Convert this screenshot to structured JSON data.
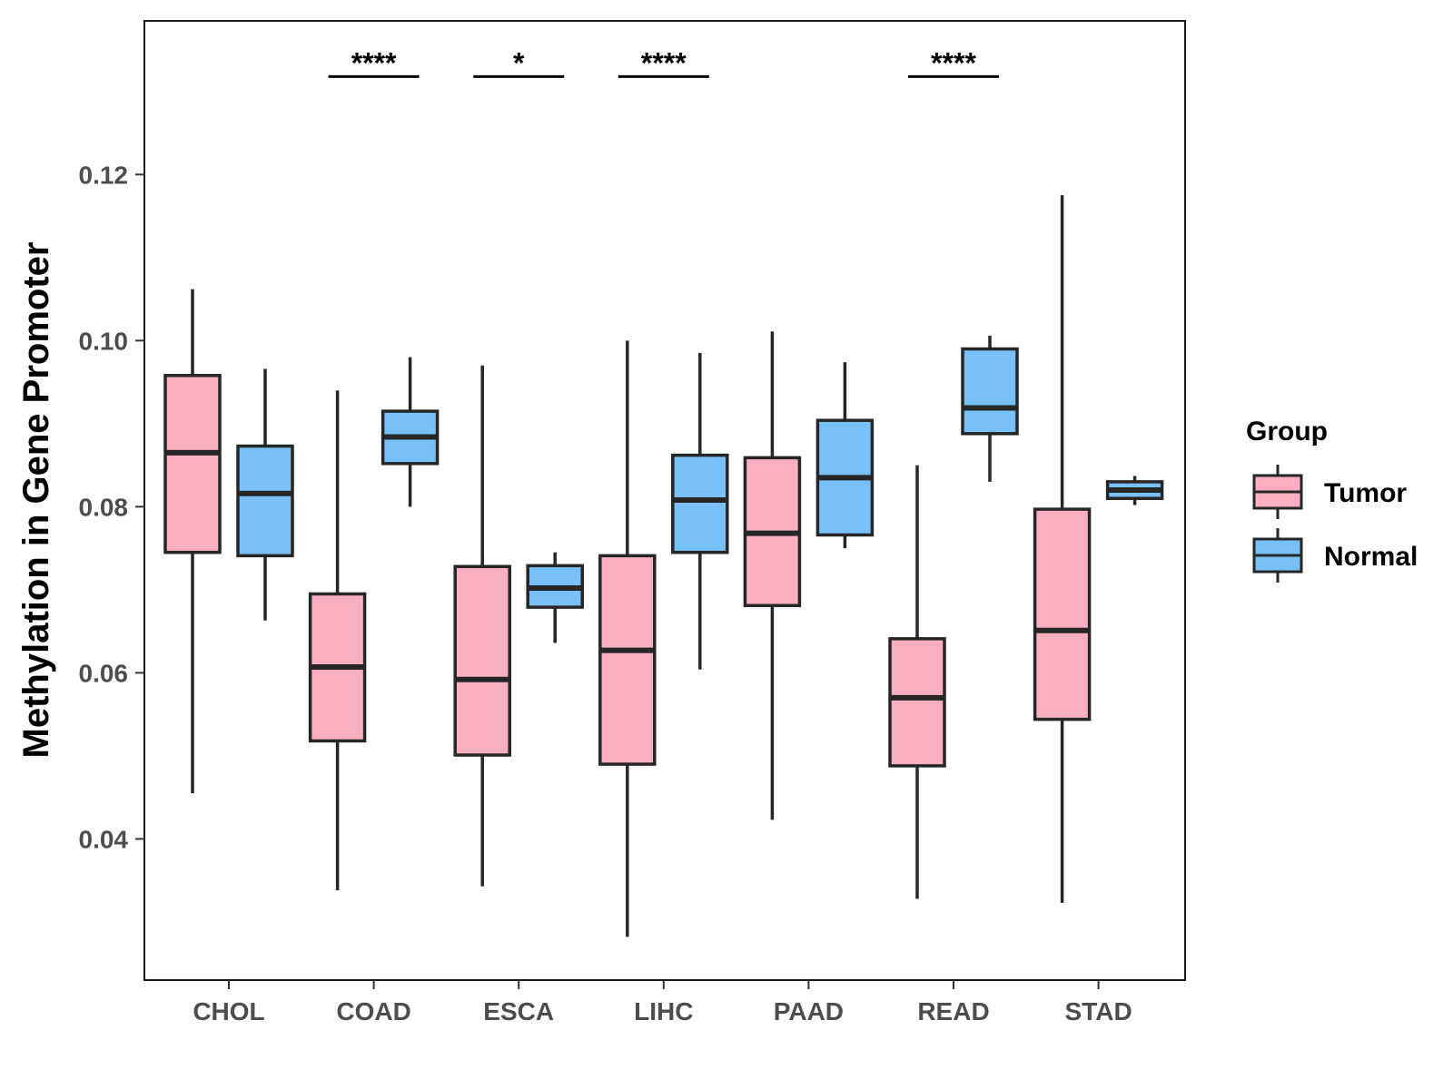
{
  "chart_data": {
    "type": "boxplot",
    "title": "",
    "xlabel": "",
    "ylabel": "Methylation in Gene Promoter",
    "ylim": [
      0.023,
      0.1385
    ],
    "yticks": [
      0.04,
      0.06,
      0.08,
      0.1,
      0.12
    ],
    "ytick_labels": [
      "0.04",
      "0.06",
      "0.08",
      "0.10",
      "0.12"
    ],
    "grid": false,
    "categories": [
      "CHOL",
      "COAD",
      "ESCA",
      "LIHC",
      "PAAD",
      "READ",
      "STAD"
    ],
    "legend": {
      "title": "Group",
      "position": "right",
      "entries": [
        {
          "name": "Tumor",
          "color": "#F9AFC0"
        },
        {
          "name": "Normal",
          "color": "#78C1F8"
        }
      ]
    },
    "series": [
      {
        "name": "Tumor",
        "color": "#F9AFC0",
        "boxes": [
          {
            "category": "CHOL",
            "min": 0.0455,
            "q1": 0.0745,
            "median": 0.0865,
            "q3": 0.0958,
            "max": 0.1062
          },
          {
            "category": "COAD",
            "min": 0.0338,
            "q1": 0.0518,
            "median": 0.0607,
            "q3": 0.0695,
            "max": 0.094
          },
          {
            "category": "ESCA",
            "min": 0.0343,
            "q1": 0.0501,
            "median": 0.0592,
            "q3": 0.0728,
            "max": 0.097
          },
          {
            "category": "LIHC",
            "min": 0.0282,
            "q1": 0.049,
            "median": 0.0627,
            "q3": 0.0741,
            "max": 0.1
          },
          {
            "category": "PAAD",
            "min": 0.0423,
            "q1": 0.0681,
            "median": 0.0768,
            "q3": 0.0859,
            "max": 0.1011
          },
          {
            "category": "READ",
            "min": 0.0328,
            "q1": 0.0488,
            "median": 0.057,
            "q3": 0.0641,
            "max": 0.085
          },
          {
            "category": "STAD",
            "min": 0.0323,
            "q1": 0.0544,
            "median": 0.0651,
            "q3": 0.0797,
            "max": 0.1175
          }
        ]
      },
      {
        "name": "Normal",
        "color": "#78C1F8",
        "boxes": [
          {
            "category": "CHOL",
            "min": 0.0663,
            "q1": 0.0741,
            "median": 0.0816,
            "q3": 0.0873,
            "max": 0.0966
          },
          {
            "category": "COAD",
            "min": 0.08,
            "q1": 0.0852,
            "median": 0.0884,
            "q3": 0.0915,
            "max": 0.098
          },
          {
            "category": "ESCA",
            "min": 0.0636,
            "q1": 0.0679,
            "median": 0.0702,
            "q3": 0.0729,
            "max": 0.0745
          },
          {
            "category": "LIHC",
            "min": 0.0604,
            "q1": 0.0745,
            "median": 0.0808,
            "q3": 0.0862,
            "max": 0.0985
          },
          {
            "category": "PAAD",
            "min": 0.075,
            "q1": 0.0766,
            "median": 0.0835,
            "q3": 0.0904,
            "max": 0.0974
          },
          {
            "category": "READ",
            "min": 0.083,
            "q1": 0.0888,
            "median": 0.0919,
            "q3": 0.099,
            "max": 0.1006
          },
          {
            "category": "STAD",
            "min": 0.0802,
            "q1": 0.081,
            "median": 0.082,
            "q3": 0.083,
            "max": 0.0837
          }
        ]
      }
    ],
    "annotations": [
      {
        "category": "COAD",
        "label": "****"
      },
      {
        "category": "ESCA",
        "label": "*"
      },
      {
        "category": "LIHC",
        "label": "****"
      },
      {
        "category": "READ",
        "label": "****"
      }
    ],
    "significance_y": 0.1318
  }
}
